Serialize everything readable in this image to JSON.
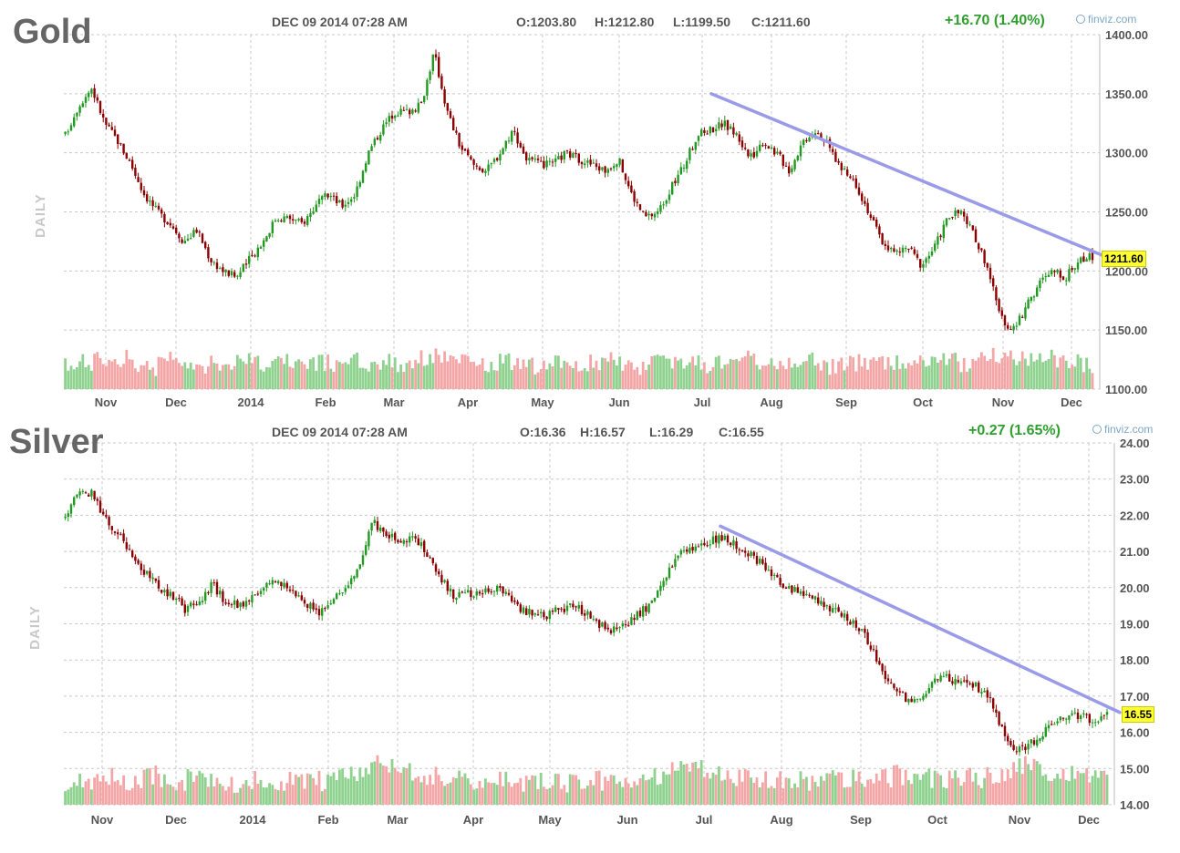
{
  "chart_data": [
    {
      "type": "candlestick",
      "title": "Gold",
      "ylabel": "DAILY",
      "header": {
        "date": "DEC 09 2014 07:28 AM",
        "open": "O:1203.80",
        "high": "H:1212.80",
        "low": "L:1199.50",
        "close": "C:1211.60",
        "change": "+16.70 (1.40%)"
      },
      "brand": "finviz.com",
      "last_price_label": "1211.60",
      "ylim": [
        1100,
        1400
      ],
      "y_ticks": [
        "1100.00",
        "1150.00",
        "1200.00",
        "1250.00",
        "1300.00",
        "1350.00",
        "1400.00"
      ],
      "x_ticks": [
        "Nov",
        "Dec",
        "2014",
        "Feb",
        "Mar",
        "Apr",
        "May",
        "Jun",
        "Jul",
        "Aug",
        "Sep",
        "Oct",
        "Nov",
        "Dec"
      ],
      "close_path": [
        1315,
        1340,
        1355,
        1325,
        1310,
        1290,
        1265,
        1250,
        1240,
        1225,
        1235,
        1210,
        1200,
        1195,
        1210,
        1225,
        1245,
        1245,
        1240,
        1255,
        1265,
        1255,
        1265,
        1300,
        1320,
        1335,
        1335,
        1340,
        1385,
        1335,
        1305,
        1290,
        1285,
        1300,
        1320,
        1295,
        1290,
        1290,
        1300,
        1295,
        1290,
        1285,
        1295,
        1265,
        1245,
        1250,
        1270,
        1290,
        1315,
        1320,
        1325,
        1315,
        1295,
        1310,
        1300,
        1285,
        1310,
        1320,
        1305,
        1285,
        1275,
        1250,
        1225,
        1215,
        1220,
        1205,
        1220,
        1245,
        1250,
        1230,
        1205,
        1160,
        1150,
        1170,
        1190,
        1200,
        1195,
        1210,
        1212
      ],
      "volume_path": [
        0.45,
        0.5,
        0.55,
        0.48,
        0.6,
        0.5,
        0.42,
        0.55,
        0.5,
        0.45,
        0.38,
        0.5,
        0.55,
        0.62,
        0.48,
        0.5,
        0.52,
        0.45,
        0.55,
        0.5,
        0.48,
        0.6,
        0.55,
        0.5,
        0.52,
        0.48,
        0.55,
        0.6,
        0.65,
        0.55,
        0.5,
        0.45,
        0.48,
        0.52,
        0.5,
        0.45,
        0.5,
        0.48,
        0.45,
        0.5,
        0.52,
        0.55,
        0.48,
        0.45,
        0.5,
        0.52,
        0.55,
        0.5,
        0.48,
        0.55,
        0.6,
        0.58,
        0.55,
        0.5,
        0.52,
        0.48,
        0.55,
        0.5,
        0.45,
        0.48,
        0.5,
        0.55,
        0.52,
        0.5,
        0.48,
        0.55,
        0.6,
        0.55,
        0.5,
        0.58,
        0.65,
        0.7,
        0.62,
        0.55,
        0.6,
        0.58,
        0.5,
        0.45,
        0.4
      ],
      "trendline": {
        "from": [
          "Jul",
          1350
        ],
        "to": [
          "Dec",
          1211.6
        ]
      }
    },
    {
      "type": "candlestick",
      "title": "Silver",
      "ylabel": "DAILY",
      "header": {
        "date": "DEC 09 2014 07:28 AM",
        "open": "O:16.36",
        "high": "H:16.57",
        "low": "L:16.29",
        "close": "C:16.55",
        "change": "+0.27 (1.65%)"
      },
      "brand": "finviz.com",
      "last_price_label": "16.55",
      "ylim": [
        14,
        24
      ],
      "y_ticks": [
        "14.00",
        "15.00",
        "16.00",
        "17.00",
        "18.00",
        "19.00",
        "20.00",
        "21.00",
        "22.00",
        "23.00",
        "24.00"
      ],
      "x_ticks": [
        "Nov",
        "Dec",
        "2014",
        "Feb",
        "Mar",
        "Apr",
        "May",
        "Jun",
        "Jul",
        "Aug",
        "Sep",
        "Oct",
        "Nov",
        "Dec"
      ],
      "close_path": [
        21.9,
        22.7,
        22.6,
        21.9,
        21.5,
        20.8,
        20.4,
        20.0,
        19.8,
        19.4,
        19.6,
        20.1,
        19.6,
        19.5,
        19.7,
        20.1,
        20.2,
        19.9,
        19.6,
        19.3,
        19.6,
        20.0,
        20.6,
        21.8,
        21.5,
        21.3,
        21.4,
        21.0,
        20.3,
        19.8,
        19.8,
        19.9,
        20.0,
        19.8,
        19.4,
        19.3,
        19.2,
        19.4,
        19.5,
        19.3,
        19.0,
        18.8,
        19.0,
        19.3,
        19.6,
        20.3,
        21.0,
        21.1,
        21.2,
        21.4,
        21.2,
        21.0,
        20.7,
        20.4,
        20.0,
        19.9,
        19.7,
        19.5,
        19.3,
        19.0,
        18.6,
        17.8,
        17.2,
        16.9,
        17.0,
        17.4,
        17.5,
        17.4,
        17.3,
        17.1,
        16.2,
        15.5,
        15.6,
        15.9,
        16.3,
        16.4,
        16.5,
        16.3,
        16.55
      ],
      "volume_path": [
        0.35,
        0.4,
        0.45,
        0.5,
        0.4,
        0.45,
        0.5,
        0.42,
        0.38,
        0.45,
        0.4,
        0.42,
        0.35,
        0.4,
        0.45,
        0.42,
        0.38,
        0.4,
        0.45,
        0.4,
        0.5,
        0.55,
        0.62,
        0.7,
        0.6,
        0.55,
        0.5,
        0.48,
        0.45,
        0.4,
        0.42,
        0.4,
        0.45,
        0.4,
        0.38,
        0.42,
        0.4,
        0.38,
        0.42,
        0.45,
        0.4,
        0.38,
        0.42,
        0.45,
        0.5,
        0.55,
        0.62,
        0.6,
        0.52,
        0.48,
        0.45,
        0.42,
        0.4,
        0.42,
        0.45,
        0.4,
        0.38,
        0.42,
        0.45,
        0.4,
        0.42,
        0.45,
        0.5,
        0.48,
        0.45,
        0.42,
        0.45,
        0.48,
        0.45,
        0.5,
        0.55,
        0.65,
        0.6,
        0.55,
        0.5,
        0.52,
        0.48,
        0.42,
        0.35
      ],
      "trendline": {
        "from": [
          "Jul",
          21.7
        ],
        "to": [
          "Dec",
          16.55
        ]
      }
    }
  ],
  "colors": {
    "up": "#229922",
    "down": "#8b0000",
    "vol_up": "#8fd18f",
    "vol_down": "#f4a6a6",
    "trendline": "#9a9ae8",
    "grid": "#c8c8c8",
    "title": "#666666",
    "change": "#2f9e2f",
    "label_bg": "#ffff33"
  }
}
